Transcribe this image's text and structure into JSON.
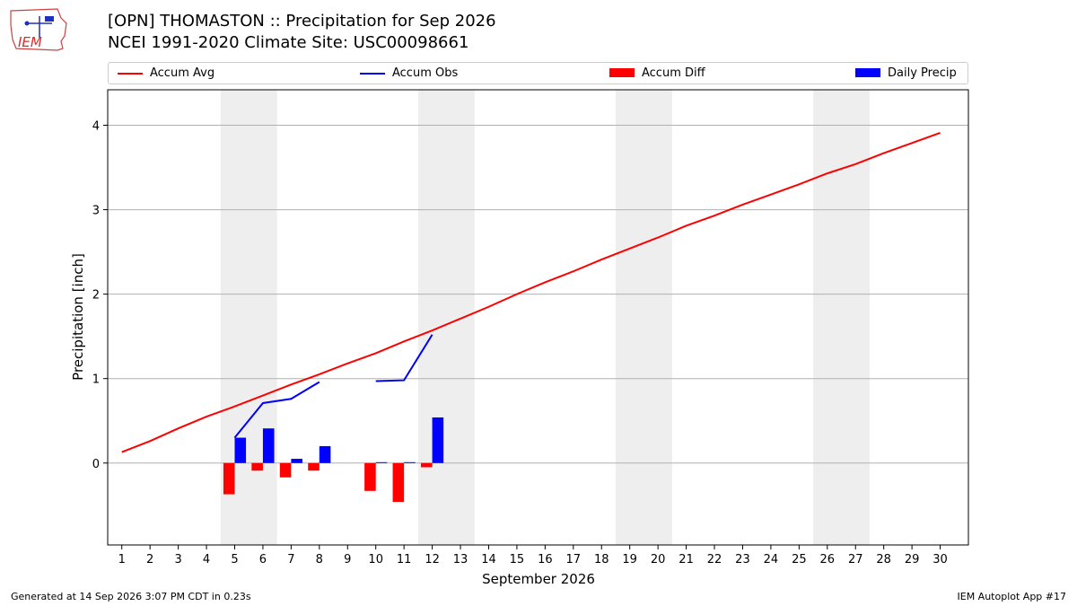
{
  "header": {
    "title": "[OPN] THOMASTON :: Precipitation for Sep 2026",
    "subtitle": "NCEI 1991-2020 Climate Site: USC00098661",
    "logo_text": "IEM"
  },
  "footer": {
    "generated": "Generated at 14 Sep 2026 3:07 PM CDT in 0.23s",
    "app": "IEM Autoplot App #17"
  },
  "legend": [
    {
      "label": "Accum Avg",
      "kind": "line",
      "color": "#ff0000"
    },
    {
      "label": "Accum Obs",
      "kind": "line",
      "color": "#0000ff"
    },
    {
      "label": "Accum Diff",
      "kind": "box",
      "color": "#ff0000"
    },
    {
      "label": "Daily Precip",
      "kind": "box",
      "color": "#0000ff"
    }
  ],
  "chart_data": {
    "type": "line",
    "xlabel": "September 2026",
    "ylabel": "Precipitation [inch]",
    "xlim": [
      0.5,
      31.0
    ],
    "ylim": [
      -0.97,
      4.42
    ],
    "x_ticks": [
      1,
      2,
      3,
      4,
      5,
      6,
      7,
      8,
      9,
      10,
      11,
      12,
      13,
      14,
      15,
      16,
      17,
      18,
      19,
      20,
      21,
      22,
      23,
      24,
      25,
      26,
      27,
      28,
      29,
      30
    ],
    "y_ticks": [
      0,
      1,
      2,
      3,
      4
    ],
    "grid": "y",
    "weekend_shading": [
      [
        4.5,
        6.5
      ],
      [
        11.5,
        13.5
      ],
      [
        18.5,
        20.5
      ],
      [
        25.5,
        27.5
      ]
    ],
    "weekend_color": "#eeeeee",
    "accum_avg": {
      "name": "Accum Avg",
      "color": "#ff0000",
      "x": [
        1,
        2,
        3,
        4,
        5,
        6,
        7,
        8,
        9,
        10,
        11,
        12,
        13,
        14,
        15,
        16,
        17,
        18,
        19,
        20,
        21,
        22,
        23,
        24,
        25,
        26,
        27,
        28,
        29,
        30
      ],
      "values": [
        0.13,
        0.26,
        0.41,
        0.55,
        0.67,
        0.8,
        0.93,
        1.05,
        1.18,
        1.3,
        1.44,
        1.57,
        1.71,
        1.85,
        2.0,
        2.14,
        2.27,
        2.41,
        2.54,
        2.67,
        2.81,
        2.93,
        3.06,
        3.18,
        3.3,
        3.43,
        3.54,
        3.67,
        3.79,
        3.91
      ]
    },
    "accum_obs": {
      "name": "Accum Obs",
      "color": "#0000ff",
      "segments": [
        {
          "x": [
            5,
            6,
            7,
            8
          ],
          "values": [
            0.3,
            0.71,
            0.76,
            0.96
          ]
        },
        {
          "x": [
            10,
            11,
            12
          ],
          "values": [
            0.97,
            0.98,
            1.52
          ]
        }
      ]
    },
    "accum_diff": {
      "name": "Accum Diff",
      "color": "#ff0000",
      "x": [
        5,
        6,
        7,
        8,
        10,
        11,
        12
      ],
      "values": [
        -0.37,
        -0.09,
        -0.17,
        -0.09,
        -0.33,
        -0.46,
        -0.05
      ]
    },
    "daily_precip": {
      "name": "Daily Precip",
      "color": "#0000ff",
      "x": [
        5,
        6,
        7,
        8,
        10,
        11,
        12
      ],
      "values": [
        0.3,
        0.41,
        0.05,
        0.2,
        0.01,
        0.01,
        0.54
      ]
    }
  }
}
